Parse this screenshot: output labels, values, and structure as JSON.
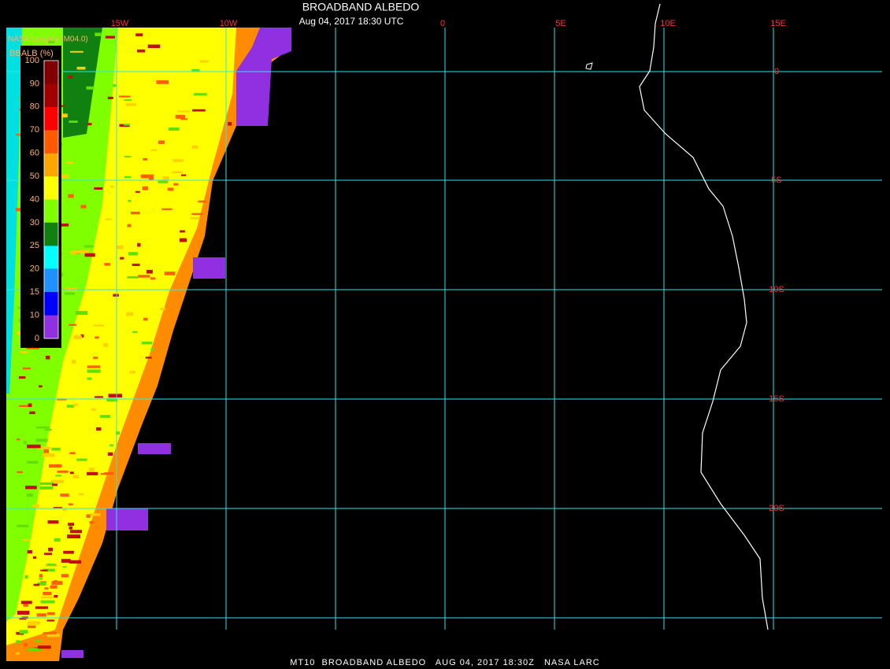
{
  "header": {
    "title": "BROADBAND ALBEDO",
    "date": "Aug 04, 2017 18:30 UTC",
    "credit": "NASA Langley (M04.0)"
  },
  "colorbar": {
    "title": "BBALB (%)",
    "labels": [
      "100",
      "90",
      "80",
      "70",
      "60",
      "50",
      "40",
      "30",
      "25",
      "20",
      "15",
      "10",
      "0"
    ]
  },
  "grid": {
    "lon_labels": [
      "15W",
      "10W",
      "0",
      "5E",
      "10E",
      "15E"
    ],
    "lat_labels": [
      "0",
      "5S",
      "10S",
      "15S",
      "20S"
    ]
  },
  "footer": {
    "text": "MT10  BROADBAND ALBEDO   AUG 04, 2017 18:30Z   NASA LARC"
  }
}
